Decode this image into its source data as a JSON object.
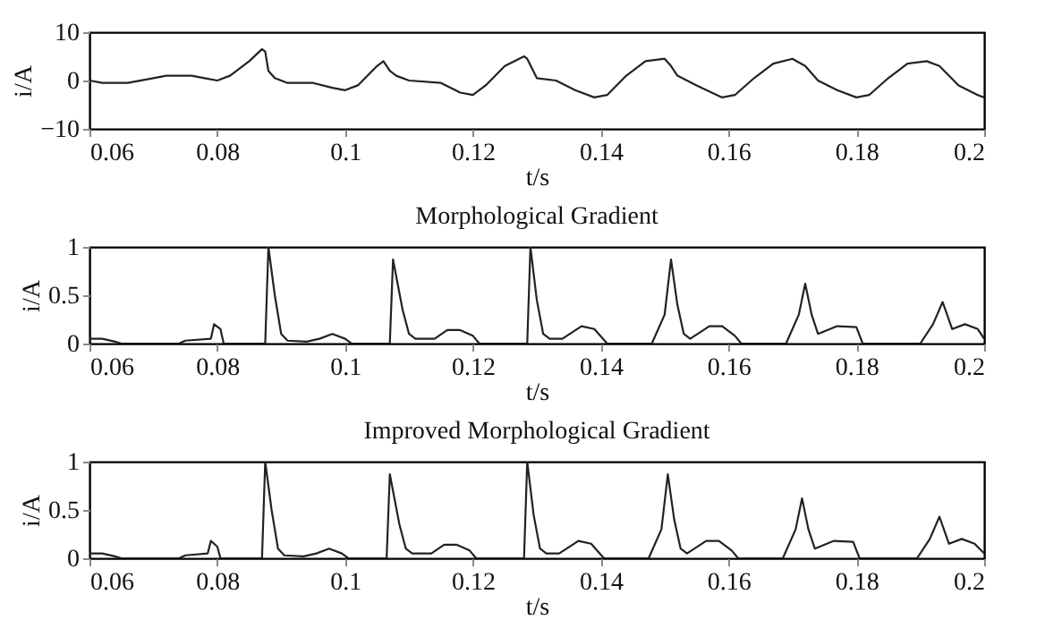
{
  "chart_data": [
    {
      "type": "line",
      "xlabel": "t/s",
      "ylabel": "i/A",
      "xlim": [
        0.06,
        0.2
      ],
      "ylim": [
        -10,
        10
      ],
      "xticks": [
        0.06,
        0.08,
        0.1,
        0.12,
        0.14,
        0.16,
        0.18,
        0.2
      ],
      "yticks": [
        -10,
        0,
        10
      ],
      "grid": false,
      "marker": "none",
      "line_style": "solid",
      "series": [
        {
          "color": "#222222",
          "x": [
            0.06,
            0.062,
            0.066,
            0.07,
            0.072,
            0.076,
            0.078,
            0.08,
            0.082,
            0.085,
            0.087,
            0.0875,
            0.088,
            0.089,
            0.091,
            0.095,
            0.098,
            0.1,
            0.102,
            0.105,
            0.106,
            0.107,
            0.108,
            0.11,
            0.115,
            0.118,
            0.12,
            0.122,
            0.125,
            0.128,
            0.1285,
            0.13,
            0.133,
            0.136,
            0.139,
            0.141,
            0.144,
            0.147,
            0.15,
            0.151,
            0.152,
            0.155,
            0.159,
            0.161,
            0.164,
            0.167,
            0.17,
            0.172,
            0.174,
            0.177,
            0.18,
            0.182,
            0.185,
            0.188,
            0.191,
            0.193,
            0.196,
            0.199,
            0.2
          ],
          "values": [
            0,
            -0.5,
            -0.5,
            0.5,
            1,
            1,
            0.5,
            0,
            1,
            4,
            6.5,
            6,
            2,
            0.5,
            -0.5,
            -0.5,
            -1.5,
            -2,
            -1,
            3,
            4,
            2,
            1,
            0,
            -0.5,
            -2.5,
            -3,
            -1,
            3,
            5,
            4.5,
            0.5,
            0,
            -2,
            -3.5,
            -3,
            1,
            4,
            4.5,
            3,
            1,
            -1,
            -3.5,
            -3,
            0.5,
            3.5,
            4.5,
            3,
            0,
            -2,
            -3.5,
            -3,
            0.5,
            3.5,
            4,
            3,
            -1,
            -3,
            -3.5
          ]
        }
      ]
    },
    {
      "type": "line",
      "title": "Morphological Gradient",
      "xlabel": "t/s",
      "ylabel": "i/A",
      "xlim": [
        0.06,
        0.2
      ],
      "ylim": [
        0,
        1
      ],
      "xticks": [
        0.06,
        0.08,
        0.1,
        0.12,
        0.14,
        0.16,
        0.18,
        0.2
      ],
      "yticks": [
        0,
        0.5,
        1
      ],
      "grid": false,
      "marker": "none",
      "line_style": "solid",
      "series": [
        {
          "color": "#222222",
          "x": [
            0.06,
            0.062,
            0.064,
            0.065,
            0.074,
            0.075,
            0.079,
            0.0795,
            0.0805,
            0.081,
            0.0875,
            0.088,
            0.089,
            0.09,
            0.091,
            0.094,
            0.096,
            0.098,
            0.1,
            0.101,
            0.107,
            0.1075,
            0.109,
            0.11,
            0.111,
            0.114,
            0.116,
            0.118,
            0.12,
            0.121,
            0.1285,
            0.129,
            0.13,
            0.131,
            0.132,
            0.134,
            0.137,
            0.139,
            0.141,
            0.148,
            0.15,
            0.151,
            0.152,
            0.153,
            0.154,
            0.157,
            0.159,
            0.161,
            0.162,
            0.169,
            0.171,
            0.172,
            0.173,
            0.174,
            0.177,
            0.18,
            0.181,
            0.19,
            0.192,
            0.1935,
            0.195,
            0.197,
            0.199,
            0.2
          ],
          "values": [
            0.05,
            0.05,
            0.02,
            0,
            0,
            0.03,
            0.05,
            0.2,
            0.15,
            0,
            0,
            1,
            0.5,
            0.1,
            0.03,
            0.02,
            0.05,
            0.1,
            0.05,
            0,
            0,
            0.87,
            0.35,
            0.1,
            0.05,
            0.05,
            0.14,
            0.14,
            0.08,
            0,
            0,
            1,
            0.45,
            0.1,
            0.05,
            0.05,
            0.18,
            0.15,
            0,
            0,
            0.3,
            0.87,
            0.4,
            0.1,
            0.05,
            0.18,
            0.18,
            0.08,
            0,
            0,
            0.3,
            0.62,
            0.3,
            0.1,
            0.18,
            0.17,
            0,
            0,
            0.2,
            0.43,
            0.15,
            0.2,
            0.15,
            0.05
          ]
        }
      ]
    },
    {
      "type": "line",
      "title": "Improved Morphological Gradient",
      "xlabel": "t/s",
      "ylabel": "i/A",
      "xlim": [
        0.06,
        0.2
      ],
      "ylim": [
        0,
        1
      ],
      "xticks": [
        0.06,
        0.08,
        0.1,
        0.12,
        0.14,
        0.16,
        0.18,
        0.2
      ],
      "yticks": [
        0,
        0.5,
        1
      ],
      "grid": false,
      "marker": "none",
      "line_style": "solid",
      "series": [
        {
          "color": "#222222",
          "x": [
            0.06,
            0.062,
            0.064,
            0.065,
            0.074,
            0.075,
            0.0785,
            0.079,
            0.08,
            0.0805,
            0.087,
            0.0875,
            0.0885,
            0.0895,
            0.0905,
            0.0935,
            0.0955,
            0.0975,
            0.0995,
            0.1005,
            0.1065,
            0.107,
            0.1085,
            0.1095,
            0.1105,
            0.1135,
            0.1155,
            0.1175,
            0.1195,
            0.1205,
            0.128,
            0.1285,
            0.1295,
            0.1305,
            0.1315,
            0.1335,
            0.1365,
            0.1385,
            0.1405,
            0.1475,
            0.1495,
            0.1505,
            0.1515,
            0.1525,
            0.1535,
            0.1565,
            0.1585,
            0.1605,
            0.1615,
            0.1685,
            0.1705,
            0.1715,
            0.1725,
            0.1735,
            0.1765,
            0.1795,
            0.1805,
            0.1895,
            0.1915,
            0.193,
            0.1945,
            0.1965,
            0.1985,
            0.2
          ],
          "values": [
            0.05,
            0.05,
            0.02,
            0,
            0,
            0.03,
            0.05,
            0.18,
            0.12,
            0,
            0,
            1,
            0.5,
            0.1,
            0.03,
            0.02,
            0.05,
            0.1,
            0.05,
            0,
            0,
            0.87,
            0.35,
            0.1,
            0.05,
            0.05,
            0.14,
            0.14,
            0.08,
            0,
            0,
            1,
            0.45,
            0.1,
            0.05,
            0.05,
            0.18,
            0.15,
            0,
            0,
            0.3,
            0.87,
            0.4,
            0.1,
            0.05,
            0.18,
            0.18,
            0.08,
            0,
            0,
            0.3,
            0.62,
            0.3,
            0.1,
            0.18,
            0.17,
            0,
            0,
            0.2,
            0.43,
            0.15,
            0.2,
            0.15,
            0.05
          ]
        }
      ]
    }
  ]
}
